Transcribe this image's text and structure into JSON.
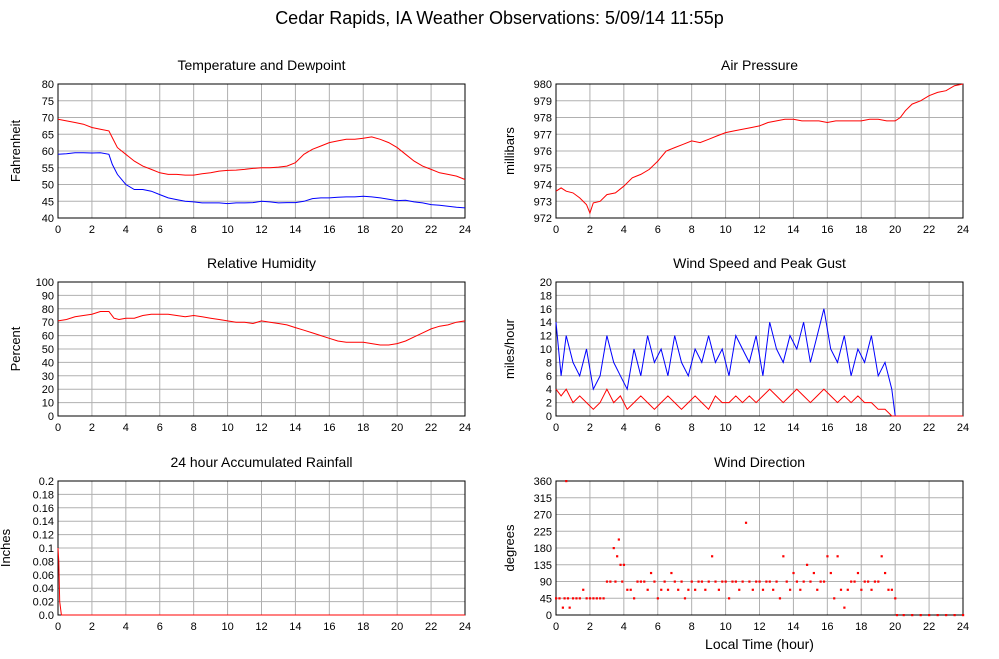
{
  "page": {
    "title": "Cedar Rapids, IA Weather Observations: 5/09/14 11:55p"
  },
  "chart_data": [
    {
      "type": "line",
      "title": "Temperature and Dewpoint",
      "xlabel": "",
      "ylabel": "Fahrenheit",
      "xlim": [
        0,
        24
      ],
      "ylim": [
        40,
        80
      ],
      "xticks": [
        0,
        2,
        4,
        6,
        8,
        10,
        12,
        14,
        16,
        18,
        20,
        22,
        24
      ],
      "yticks": [
        40,
        45,
        50,
        55,
        60,
        65,
        70,
        75,
        80
      ],
      "grid": true,
      "series": [
        {
          "color": "#ff0000",
          "x": [
            0,
            0.5,
            1,
            1.5,
            2,
            2.5,
            3,
            3.2,
            3.5,
            4,
            4.5,
            5,
            5.5,
            6,
            6.5,
            7,
            7.5,
            8,
            8.5,
            9,
            9.5,
            10,
            10.5,
            11,
            11.5,
            12,
            12.5,
            13,
            13.5,
            14,
            14.5,
            15,
            15.5,
            16,
            16.5,
            17,
            17.5,
            18,
            18.5,
            19,
            19.5,
            20,
            20.5,
            21,
            21.5,
            22,
            22.5,
            23,
            23.5,
            24
          ],
          "y": [
            69.5,
            69,
            68.5,
            68,
            67,
            66.5,
            66,
            64,
            61,
            59,
            57,
            55.5,
            54.5,
            53.5,
            53,
            53,
            52.8,
            52.8,
            53.2,
            53.5,
            54,
            54.2,
            54.3,
            54.5,
            54.8,
            55,
            55,
            55.2,
            55.5,
            56.5,
            59,
            60.5,
            61.5,
            62.5,
            63,
            63.5,
            63.5,
            63.8,
            64.2,
            63.5,
            62.5,
            61,
            59,
            57,
            55.5,
            54.5,
            53.5,
            53,
            52.5,
            51.5
          ]
        },
        {
          "color": "#0000ff",
          "x": [
            0,
            0.5,
            1,
            1.5,
            2,
            2.5,
            3,
            3.2,
            3.5,
            4,
            4.5,
            5,
            5.5,
            6,
            6.5,
            7,
            7.5,
            8,
            8.5,
            9,
            9.5,
            10,
            10.5,
            11,
            11.5,
            12,
            12.5,
            13,
            13.5,
            14,
            14.5,
            15,
            15.5,
            16,
            16.5,
            17,
            17.5,
            18,
            18.5,
            19,
            19.5,
            20,
            20.5,
            21,
            21.5,
            22,
            22.5,
            23,
            23.5,
            24
          ],
          "y": [
            59,
            59.2,
            59.5,
            59.5,
            59.4,
            59.5,
            59,
            56,
            53,
            50,
            48.5,
            48.5,
            48,
            47,
            46,
            45.5,
            45,
            44.8,
            44.5,
            44.5,
            44.5,
            44.3,
            44.5,
            44.5,
            44.6,
            45,
            44.8,
            44.5,
            44.6,
            44.6,
            45,
            45.8,
            46,
            46,
            46.2,
            46.3,
            46.3,
            46.5,
            46.3,
            46,
            45.6,
            45.2,
            45.3,
            44.8,
            44.5,
            44,
            43.8,
            43.5,
            43.2,
            43
          ]
        }
      ]
    },
    {
      "type": "line",
      "title": "Air Pressure",
      "xlabel": "",
      "ylabel": "millibars",
      "xlim": [
        0,
        24
      ],
      "ylim": [
        972,
        980
      ],
      "xticks": [
        0,
        2,
        4,
        6,
        8,
        10,
        12,
        14,
        16,
        18,
        20,
        22,
        24
      ],
      "yticks": [
        972,
        973,
        974,
        975,
        976,
        977,
        978,
        979,
        980
      ],
      "grid": true,
      "series": [
        {
          "color": "#ff0000",
          "x": [
            0,
            0.3,
            0.6,
            1,
            1.4,
            1.8,
            2,
            2.2,
            2.6,
            3,
            3.5,
            4,
            4.5,
            5,
            5.5,
            6,
            6.5,
            7,
            7.5,
            8,
            8.5,
            9,
            9.5,
            10,
            10.5,
            11,
            11.5,
            12,
            12.5,
            13,
            13.5,
            14,
            14.5,
            15,
            15.5,
            16,
            16.5,
            17,
            17.5,
            18,
            18.5,
            19,
            19.5,
            20,
            20.3,
            20.6,
            21,
            21.5,
            22,
            22.5,
            23,
            23.5,
            24
          ],
          "y": [
            973.6,
            973.8,
            973.6,
            973.5,
            973.2,
            972.8,
            972.3,
            972.9,
            973.0,
            973.4,
            973.5,
            973.9,
            974.4,
            974.6,
            974.9,
            975.4,
            976.0,
            976.2,
            976.4,
            976.6,
            976.5,
            976.7,
            976.9,
            977.1,
            977.2,
            977.3,
            977.4,
            977.5,
            977.7,
            977.8,
            977.9,
            977.9,
            977.8,
            977.8,
            977.8,
            977.7,
            977.8,
            977.8,
            977.8,
            977.8,
            977.9,
            977.9,
            977.8,
            977.8,
            978.0,
            978.4,
            978.8,
            979.0,
            979.3,
            979.5,
            979.6,
            979.9,
            980.0
          ]
        }
      ]
    },
    {
      "type": "line",
      "title": "Relative Humidity",
      "xlabel": "",
      "ylabel": "Percent",
      "xlim": [
        0,
        24
      ],
      "ylim": [
        0,
        100
      ],
      "xticks": [
        0,
        2,
        4,
        6,
        8,
        10,
        12,
        14,
        16,
        18,
        20,
        22,
        24
      ],
      "yticks": [
        0,
        10,
        20,
        30,
        40,
        50,
        60,
        70,
        80,
        90,
        100
      ],
      "grid": true,
      "series": [
        {
          "color": "#ff0000",
          "x": [
            0,
            0.5,
            1,
            1.5,
            2,
            2.5,
            3,
            3.3,
            3.6,
            4,
            4.5,
            5,
            5.5,
            6,
            6.5,
            7,
            7.5,
            8,
            8.5,
            9,
            9.5,
            10,
            10.5,
            11,
            11.5,
            12,
            12.5,
            13,
            13.5,
            14,
            14.5,
            15,
            15.5,
            16,
            16.5,
            17,
            17.5,
            18,
            18.5,
            19,
            19.5,
            20,
            20.5,
            21,
            21.5,
            22,
            22.5,
            23,
            23.5,
            24
          ],
          "y": [
            71,
            72,
            74,
            75,
            76,
            78,
            78,
            73,
            72,
            73,
            73,
            75,
            76,
            76,
            76,
            75,
            74,
            75,
            74,
            73,
            72,
            71,
            70,
            70,
            69,
            71,
            70,
            69,
            68,
            66,
            64,
            62,
            60,
            58,
            56,
            55,
            55,
            55,
            54,
            53,
            53,
            54,
            56,
            59,
            62,
            65,
            67,
            68,
            70,
            71
          ]
        }
      ]
    },
    {
      "type": "line",
      "title": "Wind Speed and Peak Gust",
      "xlabel": "",
      "ylabel": "miles/hour",
      "xlim": [
        0,
        24
      ],
      "ylim": [
        0,
        20
      ],
      "xticks": [
        0,
        2,
        4,
        6,
        8,
        10,
        12,
        14,
        16,
        18,
        20,
        22,
        24
      ],
      "yticks": [
        0,
        2,
        4,
        6,
        8,
        10,
        12,
        14,
        16,
        18,
        20
      ],
      "grid": true,
      "series": [
        {
          "color": "#0000ff",
          "x": [
            0,
            0.3,
            0.6,
            1,
            1.4,
            1.8,
            2.2,
            2.6,
            3,
            3.4,
            3.8,
            4.2,
            4.6,
            5,
            5.4,
            5.8,
            6.2,
            6.6,
            7,
            7.4,
            7.8,
            8.2,
            8.6,
            9,
            9.4,
            9.8,
            10.2,
            10.6,
            11,
            11.4,
            11.8,
            12.2,
            12.6,
            13,
            13.4,
            13.8,
            14.2,
            14.6,
            15,
            15.4,
            15.8,
            16.2,
            16.6,
            17,
            17.4,
            17.8,
            18.2,
            18.6,
            19,
            19.4,
            19.8,
            20,
            21,
            22,
            23,
            24
          ],
          "y": [
            14,
            6,
            12,
            8,
            6,
            10,
            4,
            6,
            12,
            8,
            6,
            4,
            10,
            6,
            12,
            8,
            10,
            6,
            12,
            8,
            6,
            10,
            8,
            12,
            8,
            10,
            6,
            12,
            10,
            8,
            12,
            6,
            14,
            10,
            8,
            12,
            10,
            14,
            8,
            12,
            16,
            10,
            8,
            12,
            6,
            10,
            8,
            12,
            6,
            8,
            4,
            0,
            0,
            0,
            0,
            0
          ]
        },
        {
          "color": "#ff0000",
          "x": [
            0,
            0.3,
            0.6,
            1,
            1.4,
            1.8,
            2.2,
            2.6,
            3,
            3.4,
            3.8,
            4.2,
            4.6,
            5,
            5.4,
            5.8,
            6.2,
            6.6,
            7,
            7.4,
            7.8,
            8.2,
            8.6,
            9,
            9.4,
            9.8,
            10.2,
            10.6,
            11,
            11.4,
            11.8,
            12.2,
            12.6,
            13,
            13.4,
            13.8,
            14.2,
            14.6,
            15,
            15.4,
            15.8,
            16.2,
            16.6,
            17,
            17.4,
            17.8,
            18.2,
            18.6,
            19,
            19.4,
            19.8,
            20,
            21,
            22,
            23,
            24
          ],
          "y": [
            4,
            3,
            4,
            2,
            3,
            2,
            1,
            2,
            4,
            2,
            3,
            1,
            2,
            3,
            2,
            1,
            2,
            3,
            2,
            1,
            2,
            3,
            2,
            1,
            3,
            2,
            2,
            3,
            2,
            3,
            2,
            3,
            4,
            3,
            2,
            3,
            4,
            3,
            2,
            3,
            4,
            3,
            2,
            3,
            2,
            3,
            2,
            2,
            1,
            1,
            0,
            0,
            0,
            0,
            0,
            0
          ]
        }
      ]
    },
    {
      "type": "line",
      "title": "24 hour Accumulated Rainfall",
      "xlabel": "",
      "ylabel": "Inches",
      "xlim": [
        0,
        24
      ],
      "ylim": [
        0,
        0.2
      ],
      "xticks": [
        0,
        2,
        4,
        6,
        8,
        10,
        12,
        14,
        16,
        18,
        20,
        22,
        24
      ],
      "yticks": [
        "0.0",
        "0.02",
        "0.04",
        "0.06",
        "0.08",
        "0.1",
        "0.12",
        "0.14",
        "0.16",
        "0.18",
        "0.2"
      ],
      "grid": true,
      "series": [
        {
          "color": "#ff0000",
          "x": [
            0,
            0.05,
            0.1,
            0.2,
            24
          ],
          "y": [
            0.1,
            0.08,
            0.02,
            0,
            0
          ]
        }
      ]
    },
    {
      "type": "scatter",
      "title": "Wind Direction",
      "xlabel": "Local Time (hour)",
      "ylabel": "degrees",
      "xlim": [
        0,
        24
      ],
      "ylim": [
        0,
        360
      ],
      "xticks": [
        0,
        2,
        4,
        6,
        8,
        10,
        12,
        14,
        16,
        18,
        20,
        22,
        24
      ],
      "yticks": [
        0,
        45,
        90,
        135,
        180,
        225,
        270,
        315,
        360
      ],
      "grid": true,
      "series": [
        {
          "color": "#ff0000",
          "x": [
            0,
            0.2,
            0.4,
            0.5,
            0.6,
            0.7,
            0.8,
            1.0,
            1.2,
            1.4,
            1.6,
            1.8,
            2.0,
            2.2,
            2.4,
            2.6,
            2.8,
            3.0,
            3.2,
            3.4,
            3.5,
            3.6,
            3.7,
            3.8,
            3.9,
            4.0,
            4.2,
            4.4,
            4.6,
            4.8,
            5.0,
            5.2,
            5.4,
            5.6,
            5.8,
            6.0,
            6.2,
            6.4,
            6.6,
            6.8,
            7.0,
            7.2,
            7.4,
            7.6,
            7.8,
            8.0,
            8.2,
            8.4,
            8.6,
            8.8,
            9.0,
            9.2,
            9.4,
            9.6,
            9.8,
            10.0,
            10.2,
            10.4,
            10.6,
            10.8,
            11.0,
            11.2,
            11.4,
            11.6,
            11.8,
            12.0,
            12.2,
            12.4,
            12.6,
            12.8,
            13.0,
            13.2,
            13.4,
            13.6,
            13.8,
            14.0,
            14.2,
            14.4,
            14.6,
            14.8,
            15.0,
            15.2,
            15.4,
            15.6,
            15.8,
            16.0,
            16.2,
            16.4,
            16.6,
            16.8,
            17.0,
            17.2,
            17.4,
            17.6,
            17.8,
            18.0,
            18.2,
            18.4,
            18.6,
            18.8,
            19.0,
            19.2,
            19.4,
            19.6,
            19.8,
            20.0
          ],
          "y": [
            45,
            45,
            20,
            45,
            360,
            45,
            20,
            45,
            45,
            45,
            68,
            45,
            45,
            45,
            45,
            45,
            45,
            90,
            90,
            180,
            90,
            158,
            203,
            135,
            90,
            135,
            68,
            68,
            45,
            90,
            90,
            90,
            68,
            113,
            90,
            45,
            68,
            90,
            68,
            113,
            90,
            68,
            90,
            45,
            68,
            90,
            68,
            90,
            90,
            68,
            90,
            158,
            90,
            68,
            90,
            90,
            45,
            90,
            90,
            68,
            90,
            248,
            90,
            68,
            90,
            90,
            68,
            90,
            90,
            68,
            90,
            45,
            158,
            90,
            68,
            113,
            90,
            68,
            90,
            135,
            90,
            113,
            68,
            90,
            90,
            158,
            113,
            45,
            158,
            68,
            20,
            68,
            90,
            90,
            113,
            68,
            90,
            90,
            68,
            90,
            90,
            158,
            113,
            68,
            68,
            45
          ]
        },
        {
          "color": "#ff0000",
          "x": [
            20.1,
            20.5,
            21,
            21.5,
            22,
            22.5,
            23,
            23.5,
            24
          ],
          "y": [
            0,
            0,
            0,
            0,
            0,
            0,
            0,
            0,
            0
          ]
        }
      ]
    }
  ]
}
